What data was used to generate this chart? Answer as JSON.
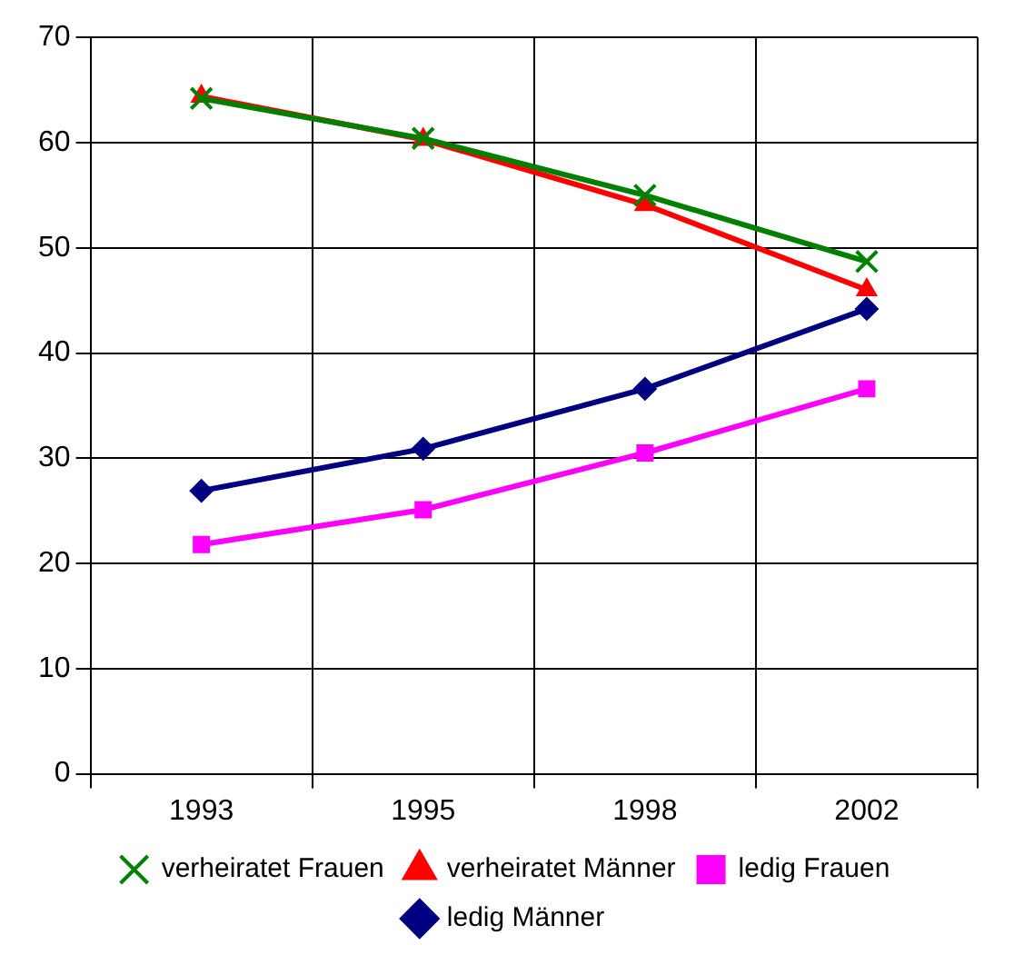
{
  "chart_data": {
    "type": "line",
    "categories": [
      "1993",
      "1995",
      "1998",
      "2002"
    ],
    "series": [
      {
        "name": "ledig Männer",
        "color": "#000080",
        "marker": "diamond",
        "values": [
          26.9,
          30.9,
          36.6,
          44.2
        ]
      },
      {
        "name": "ledig Frauen",
        "color": "#ff00ff",
        "marker": "square",
        "values": [
          21.8,
          25.1,
          30.5,
          36.6
        ]
      },
      {
        "name": "verheiratet Männer",
        "color": "#ff0000",
        "marker": "triangle",
        "values": [
          64.4,
          60.3,
          54.1,
          46.0
        ]
      },
      {
        "name": "verheiratet Frauen",
        "color": "#008000",
        "marker": "cross",
        "values": [
          64.2,
          60.4,
          55.0,
          48.7
        ]
      }
    ],
    "ylim": [
      0,
      70
    ],
    "yticks": [
      0,
      10,
      20,
      30,
      40,
      50,
      60,
      70
    ],
    "grid": true,
    "legend": "bottom"
  }
}
